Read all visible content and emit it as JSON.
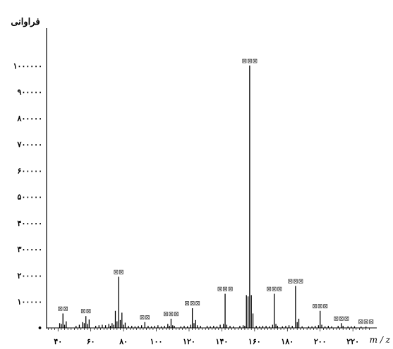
{
  "chart_data": {
    "type": "bar",
    "title": "",
    "ylabel": "فراوانی",
    "xlabel": "m / z",
    "ylim": [
      0,
      1100000
    ],
    "xlim": [
      33,
      232
    ],
    "y_ticks": [
      0,
      100000,
      200000,
      300000,
      400000,
      500000,
      600000,
      700000,
      800000,
      900000,
      1000000
    ],
    "y_tick_labels": [
      "•",
      "۱۰۰۰۰۰",
      "۲۰۰۰۰۰",
      "۳۰۰۰۰۰",
      "۴۰۰۰۰۰",
      "۵۰۰۰۰۰",
      "۶۰۰۰۰۰",
      "۷۰۰۰۰۰",
      "۸۰۰۰۰۰",
      "۹۰۰۰۰۰",
      "۱۰۰۰۰۰۰"
    ],
    "x_ticks": [
      40,
      60,
      80,
      100,
      120,
      140,
      160,
      180,
      200,
      220
    ],
    "x_tick_labels": [
      "۴۰",
      "۶۰",
      "۸۰",
      "۱۰۰",
      "۱۲۰",
      "۱۴۰",
      "۱۶۰",
      "۱۸۰",
      "۲۰۰",
      "۲۲۰"
    ],
    "peaks": [
      {
        "x": 41,
        "y": 18000
      },
      {
        "x": 42,
        "y": 15000
      },
      {
        "x": 43,
        "y": 55000
      },
      {
        "x": 44,
        "y": 12000
      },
      {
        "x": 45,
        "y": 25000
      },
      {
        "x": 51,
        "y": 8000
      },
      {
        "x": 53,
        "y": 12000
      },
      {
        "x": 55,
        "y": 22000
      },
      {
        "x": 56,
        "y": 18000
      },
      {
        "x": 57,
        "y": 45000
      },
      {
        "x": 58,
        "y": 15000
      },
      {
        "x": 59,
        "y": 32000
      },
      {
        "x": 63,
        "y": 8000
      },
      {
        "x": 65,
        "y": 10000
      },
      {
        "x": 67,
        "y": 12000
      },
      {
        "x": 69,
        "y": 10000
      },
      {
        "x": 71,
        "y": 15000
      },
      {
        "x": 72,
        "y": 8000
      },
      {
        "x": 73,
        "y": 18000
      },
      {
        "x": 74,
        "y": 12000
      },
      {
        "x": 75,
        "y": 65000
      },
      {
        "x": 76,
        "y": 25000
      },
      {
        "x": 77,
        "y": 195000
      },
      {
        "x": 78,
        "y": 30000
      },
      {
        "x": 79,
        "y": 58000
      },
      {
        "x": 80,
        "y": 12000
      },
      {
        "x": 81,
        "y": 20000
      },
      {
        "x": 83,
        "y": 8000
      },
      {
        "x": 85,
        "y": 8000
      },
      {
        "x": 87,
        "y": 6000
      },
      {
        "x": 89,
        "y": 8000
      },
      {
        "x": 91,
        "y": 10000
      },
      {
        "x": 93,
        "y": 22000
      },
      {
        "x": 95,
        "y": 8000
      },
      {
        "x": 97,
        "y": 6000
      },
      {
        "x": 99,
        "y": 8000
      },
      {
        "x": 101,
        "y": 10000
      },
      {
        "x": 103,
        "y": 6000
      },
      {
        "x": 105,
        "y": 8000
      },
      {
        "x": 107,
        "y": 15000
      },
      {
        "x": 108,
        "y": 8000
      },
      {
        "x": 109,
        "y": 35000
      },
      {
        "x": 110,
        "y": 10000
      },
      {
        "x": 111,
        "y": 8000
      },
      {
        "x": 115,
        "y": 6000
      },
      {
        "x": 117,
        "y": 8000
      },
      {
        "x": 119,
        "y": 6000
      },
      {
        "x": 121,
        "y": 12000
      },
      {
        "x": 122,
        "y": 75000
      },
      {
        "x": 123,
        "y": 18000
      },
      {
        "x": 124,
        "y": 30000
      },
      {
        "x": 125,
        "y": 10000
      },
      {
        "x": 127,
        "y": 8000
      },
      {
        "x": 131,
        "y": 8000
      },
      {
        "x": 133,
        "y": 6000
      },
      {
        "x": 135,
        "y": 8000
      },
      {
        "x": 137,
        "y": 6000
      },
      {
        "x": 139,
        "y": 12000
      },
      {
        "x": 141,
        "y": 15000
      },
      {
        "x": 142,
        "y": 130000
      },
      {
        "x": 143,
        "y": 12000
      },
      {
        "x": 145,
        "y": 8000
      },
      {
        "x": 147,
        "y": 6000
      },
      {
        "x": 151,
        "y": 8000
      },
      {
        "x": 153,
        "y": 10000
      },
      {
        "x": 154,
        "y": 8000
      },
      {
        "x": 155,
        "y": 125000
      },
      {
        "x": 156,
        "y": 120000
      },
      {
        "x": 157,
        "y": 1000000
      },
      {
        "x": 158,
        "y": 125000
      },
      {
        "x": 159,
        "y": 55000
      },
      {
        "x": 161,
        "y": 8000
      },
      {
        "x": 163,
        "y": 6000
      },
      {
        "x": 165,
        "y": 8000
      },
      {
        "x": 167,
        "y": 8000
      },
      {
        "x": 169,
        "y": 6000
      },
      {
        "x": 171,
        "y": 12000
      },
      {
        "x": 172,
        "y": 130000
      },
      {
        "x": 173,
        "y": 15000
      },
      {
        "x": 174,
        "y": 8000
      },
      {
        "x": 177,
        "y": 6000
      },
      {
        "x": 179,
        "y": 8000
      },
      {
        "x": 181,
        "y": 10000
      },
      {
        "x": 183,
        "y": 8000
      },
      {
        "x": 185,
        "y": 160000
      },
      {
        "x": 186,
        "y": 22000
      },
      {
        "x": 187,
        "y": 35000
      },
      {
        "x": 189,
        "y": 6000
      },
      {
        "x": 193,
        "y": 6000
      },
      {
        "x": 195,
        "y": 6000
      },
      {
        "x": 197,
        "y": 8000
      },
      {
        "x": 199,
        "y": 10000
      },
      {
        "x": 200,
        "y": 65000
      },
      {
        "x": 201,
        "y": 12000
      },
      {
        "x": 203,
        "y": 6000
      },
      {
        "x": 205,
        "y": 8000
      },
      {
        "x": 207,
        "y": 6000
      },
      {
        "x": 211,
        "y": 8000
      },
      {
        "x": 213,
        "y": 18000
      },
      {
        "x": 214,
        "y": 8000
      },
      {
        "x": 217,
        "y": 6000
      },
      {
        "x": 219,
        "y": 6000
      },
      {
        "x": 221,
        "y": 6000
      },
      {
        "x": 225,
        "y": 5000
      },
      {
        "x": 228,
        "y": 5000
      }
    ],
    "annotations": [
      {
        "x": 43,
        "y": 55000,
        "text": "⊠⊠"
      },
      {
        "x": 57,
        "y": 45000,
        "text": "⊠⊠"
      },
      {
        "x": 77,
        "y": 195000,
        "text": "⊠⊠"
      },
      {
        "x": 93,
        "y": 22000,
        "text": "⊠⊠"
      },
      {
        "x": 109,
        "y": 35000,
        "text": "⊠⊠⊠"
      },
      {
        "x": 122,
        "y": 75000,
        "text": "⊠⊠⊠"
      },
      {
        "x": 142,
        "y": 130000,
        "text": "⊠⊠⊠"
      },
      {
        "x": 157,
        "y": 1000000,
        "text": "⊠⊠⊠"
      },
      {
        "x": 172,
        "y": 130000,
        "text": "⊠⊠⊠"
      },
      {
        "x": 185,
        "y": 160000,
        "text": "⊠⊠⊠"
      },
      {
        "x": 200,
        "y": 65000,
        "text": "⊠⊠⊠"
      },
      {
        "x": 213,
        "y": 18000,
        "text": "⊠⊠⊠"
      },
      {
        "x": 228,
        "y": 5000,
        "text": "⊠⊠⊠"
      }
    ],
    "grid": false,
    "legend": "none"
  },
  "colors": {
    "axis": "#000000",
    "peak": "#000000",
    "label": "#333333"
  }
}
